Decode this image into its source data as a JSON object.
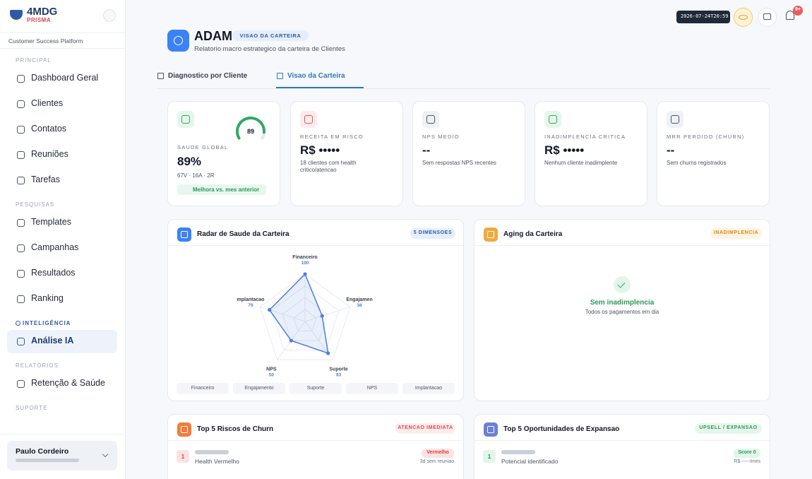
{
  "sidebar": {
    "logo": "4MDG",
    "logo_sub": "PRISMA",
    "platform": "Customer Success Platform",
    "sections": [
      {
        "title": "PRINCIPAL",
        "items": [
          "Dashboard Geral",
          "Clientes",
          "Contatos",
          "Reuniões",
          "Tarefas"
        ]
      },
      {
        "title": "PESQUISAS",
        "items": [
          "Templates",
          "Campanhas",
          "Resultados",
          "Ranking"
        ]
      },
      {
        "title": "INTELIGÊNCIA",
        "items": [
          "Análise IA"
        ]
      },
      {
        "title": "RELATÓRIOS",
        "items": [
          "Retenção & Saúde"
        ]
      },
      {
        "title": "SUPORTE",
        "items": []
      }
    ],
    "user": {
      "name": "Paulo Cordeiro"
    }
  },
  "topbar": {
    "timestamp": "2026-07-24T20:59",
    "badge": "9+"
  },
  "header": {
    "title": "ADAM",
    "tag": "VISAO DA CARTEIRA",
    "subtitle": "Relatorio macro estrategico da carteira de Clientes"
  },
  "tabs": [
    "Diagnostico por Cliente",
    "Visao da Carteira"
  ],
  "kpis": [
    {
      "label": "SAUDE GLOBAL",
      "value": "89%",
      "sub": "67V · 16A · 2R",
      "trend": "Melhora vs. mes anterior",
      "gauge": 89
    },
    {
      "label": "RECEITA EM RISCO",
      "value": "R$ •••••",
      "sub": "18 clientes com health critico/atencao"
    },
    {
      "label": "NPS MEDIO",
      "value": "--",
      "sub": "Sem respostas NPS recentes"
    },
    {
      "label": "INADIMPLENCIA CRITICA",
      "value": "R$ •••••",
      "sub": "Nenhum cliente inadimplente"
    },
    {
      "label": "MRR PERDIDO (CHURN)",
      "value": "--",
      "sub": "Sem churns registrados"
    }
  ],
  "radar": {
    "type": "radar",
    "title": "Radar de Saude da Carteira",
    "tag": "5 DIMENSOES",
    "axis_labels": [
      "Financeiro",
      "Engajamen",
      "Suporte",
      "NPS",
      "mplantacao"
    ],
    "categories": [
      "Financeiro",
      "Engajamento",
      "Suporte",
      "NPS",
      "Implantacao"
    ],
    "values": [
      100,
      38,
      83,
      50,
      79
    ],
    "rlim": [
      0,
      100
    ],
    "color": "#4a7fe0"
  },
  "aging": {
    "title": "Aging da Carteira",
    "tag": "INADIMPLENCIA",
    "empty_title": "Sem inadimplencia",
    "empty_sub": "Todos os pagamentos em dia"
  },
  "churn": {
    "title": "Top 5 Riscos de Churn",
    "tag": "ATENCAO IMEDIATA",
    "rows": [
      {
        "rank": 1,
        "sub": "Health Vermelho",
        "status": "Vermelho",
        "note": "3d sem reuniao"
      }
    ]
  },
  "expansion": {
    "title": "Top 5 Oportunidades de Expansao",
    "tag": "UPSELL / EXPANSAO",
    "rows": [
      {
        "rank": 1,
        "sub": "Potencial identificado",
        "status": "Score 0",
        "note": "R$ -----/mes"
      }
    ]
  }
}
